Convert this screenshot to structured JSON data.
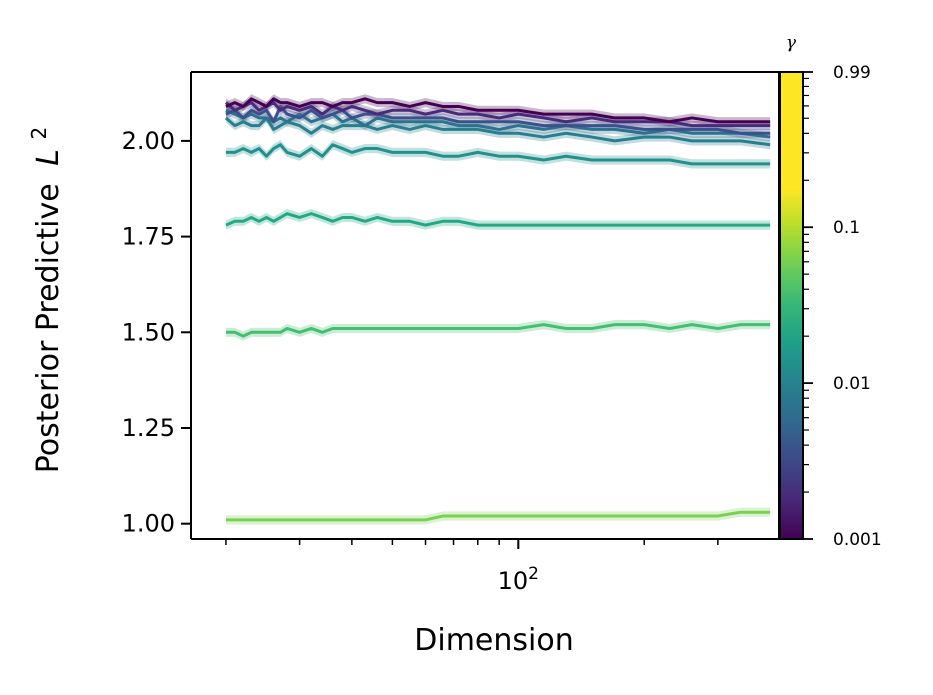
{
  "chart_data": {
    "type": "line",
    "xlabel": "Dimension",
    "ylabel": "Posterior Predictive",
    "ylabel_sup": "2",
    "ylabel_symbol": "L",
    "x_scale": "log",
    "x_major_tick_labels": [
      {
        "value": 100,
        "base": "10",
        "exp": "2"
      }
    ],
    "x_minor_ticks": [
      20,
      30,
      40,
      50,
      60,
      70,
      80,
      90,
      200,
      300
    ],
    "xlim": [
      16.5,
      420
    ],
    "ylim": [
      0.96,
      2.18
    ],
    "yticks": [
      1.0,
      1.25,
      1.5,
      1.75,
      2.0
    ],
    "ytick_labels": [
      "1.00",
      "1.25",
      "1.50",
      "1.75",
      "2.00"
    ],
    "x": [
      20,
      21,
      22,
      23,
      24,
      25,
      26,
      27,
      28,
      30,
      32,
      34,
      36,
      38,
      40,
      43,
      46,
      50,
      55,
      60,
      66,
      72,
      80,
      90,
      100,
      115,
      130,
      150,
      170,
      200,
      230,
      260,
      300,
      340,
      400
    ],
    "series": [
      {
        "gamma": 0.001,
        "color": "#440154",
        "values": [
          2.09,
          2.1,
          2.09,
          2.11,
          2.1,
          2.09,
          2.11,
          2.1,
          2.1,
          2.09,
          2.1,
          2.1,
          2.09,
          2.1,
          2.1,
          2.11,
          2.1,
          2.1,
          2.09,
          2.1,
          2.09,
          2.09,
          2.08,
          2.08,
          2.08,
          2.07,
          2.07,
          2.07,
          2.06,
          2.06,
          2.05,
          2.06,
          2.05,
          2.05,
          2.05
        ]
      },
      {
        "gamma": 0.002,
        "color": "#472c7a",
        "values": [
          2.1,
          2.08,
          2.09,
          2.1,
          2.08,
          2.09,
          2.1,
          2.08,
          2.09,
          2.08,
          2.09,
          2.07,
          2.09,
          2.08,
          2.09,
          2.08,
          2.07,
          2.08,
          2.08,
          2.07,
          2.08,
          2.07,
          2.07,
          2.06,
          2.07,
          2.06,
          2.05,
          2.06,
          2.05,
          2.05,
          2.05,
          2.04,
          2.04,
          2.04,
          2.04
        ]
      },
      {
        "gamma": 0.005,
        "color": "#3b518b",
        "values": [
          2.07,
          2.08,
          2.06,
          2.08,
          2.07,
          2.08,
          2.05,
          2.09,
          2.07,
          2.06,
          2.08,
          2.06,
          2.07,
          2.08,
          2.06,
          2.07,
          2.07,
          2.06,
          2.06,
          2.06,
          2.06,
          2.05,
          2.05,
          2.05,
          2.05,
          2.04,
          2.04,
          2.04,
          2.04,
          2.03,
          2.03,
          2.03,
          2.03,
          2.02,
          2.02
        ]
      },
      {
        "gamma": 0.01,
        "color": "#2c718e",
        "values": [
          2.08,
          2.07,
          2.06,
          2.07,
          2.06,
          2.06,
          2.05,
          2.06,
          2.05,
          2.07,
          2.05,
          2.06,
          2.07,
          2.05,
          2.06,
          2.04,
          2.06,
          2.05,
          2.05,
          2.05,
          2.05,
          2.04,
          2.04,
          2.03,
          2.04,
          2.03,
          2.04,
          2.03,
          2.03,
          2.02,
          2.03,
          2.02,
          2.02,
          2.02,
          2.01
        ]
      },
      {
        "gamma": 0.02,
        "color": "#277f8e",
        "values": [
          2.06,
          2.04,
          2.05,
          2.04,
          2.04,
          2.06,
          2.03,
          2.04,
          2.05,
          2.04,
          2.02,
          2.04,
          2.03,
          2.04,
          2.04,
          2.04,
          2.03,
          2.04,
          2.03,
          2.04,
          2.03,
          2.03,
          2.03,
          2.02,
          2.02,
          2.01,
          2.02,
          2.01,
          2.0,
          2.01,
          2.01,
          2.0,
          2.0,
          2.0,
          1.99
        ]
      },
      {
        "gamma": 0.05,
        "color": "#21918c",
        "values": [
          1.97,
          1.97,
          1.98,
          1.97,
          1.98,
          1.96,
          1.98,
          1.99,
          1.97,
          1.96,
          1.98,
          1.96,
          1.99,
          1.98,
          1.97,
          1.98,
          1.98,
          1.97,
          1.97,
          1.97,
          1.96,
          1.96,
          1.97,
          1.96,
          1.96,
          1.95,
          1.96,
          1.95,
          1.95,
          1.95,
          1.95,
          1.94,
          1.94,
          1.94,
          1.94
        ]
      },
      {
        "gamma": 0.15,
        "color": "#22a884",
        "values": [
          1.78,
          1.79,
          1.79,
          1.8,
          1.79,
          1.8,
          1.79,
          1.8,
          1.81,
          1.8,
          1.81,
          1.8,
          1.79,
          1.8,
          1.8,
          1.79,
          1.8,
          1.79,
          1.79,
          1.78,
          1.79,
          1.79,
          1.78,
          1.78,
          1.78,
          1.78,
          1.78,
          1.78,
          1.78,
          1.78,
          1.78,
          1.78,
          1.78,
          1.78,
          1.78
        ]
      },
      {
        "gamma": 0.4,
        "color": "#44bf70",
        "values": [
          1.5,
          1.5,
          1.49,
          1.5,
          1.5,
          1.5,
          1.5,
          1.5,
          1.51,
          1.5,
          1.51,
          1.5,
          1.51,
          1.51,
          1.51,
          1.51,
          1.51,
          1.51,
          1.51,
          1.51,
          1.51,
          1.51,
          1.51,
          1.51,
          1.51,
          1.52,
          1.51,
          1.51,
          1.52,
          1.52,
          1.51,
          1.52,
          1.51,
          1.52,
          1.52
        ]
      },
      {
        "gamma": 0.99,
        "color": "#7ad151",
        "values": [
          1.01,
          1.01,
          1.01,
          1.01,
          1.01,
          1.01,
          1.01,
          1.01,
          1.01,
          1.01,
          1.01,
          1.01,
          1.01,
          1.01,
          1.01,
          1.01,
          1.01,
          1.01,
          1.01,
          1.01,
          1.02,
          1.02,
          1.02,
          1.02,
          1.02,
          1.02,
          1.02,
          1.02,
          1.02,
          1.02,
          1.02,
          1.02,
          1.02,
          1.03,
          1.03
        ]
      }
    ],
    "band_halfwidth": 0.012,
    "colorbar": {
      "label": "γ",
      "scale": "log",
      "range": [
        0.001,
        0.99
      ],
      "ticks": [
        0.001,
        0.01,
        0.1,
        0.99
      ],
      "tick_labels": [
        "0.001",
        "0.01",
        "0.1",
        "0.99"
      ],
      "colormap": [
        "#440154",
        "#482878",
        "#3e4989",
        "#31688e",
        "#26828e",
        "#1f9e89",
        "#35b779",
        "#6dcd59",
        "#b4de2c",
        "#fde725"
      ],
      "colormap_top_fraction": 0.75
    }
  }
}
